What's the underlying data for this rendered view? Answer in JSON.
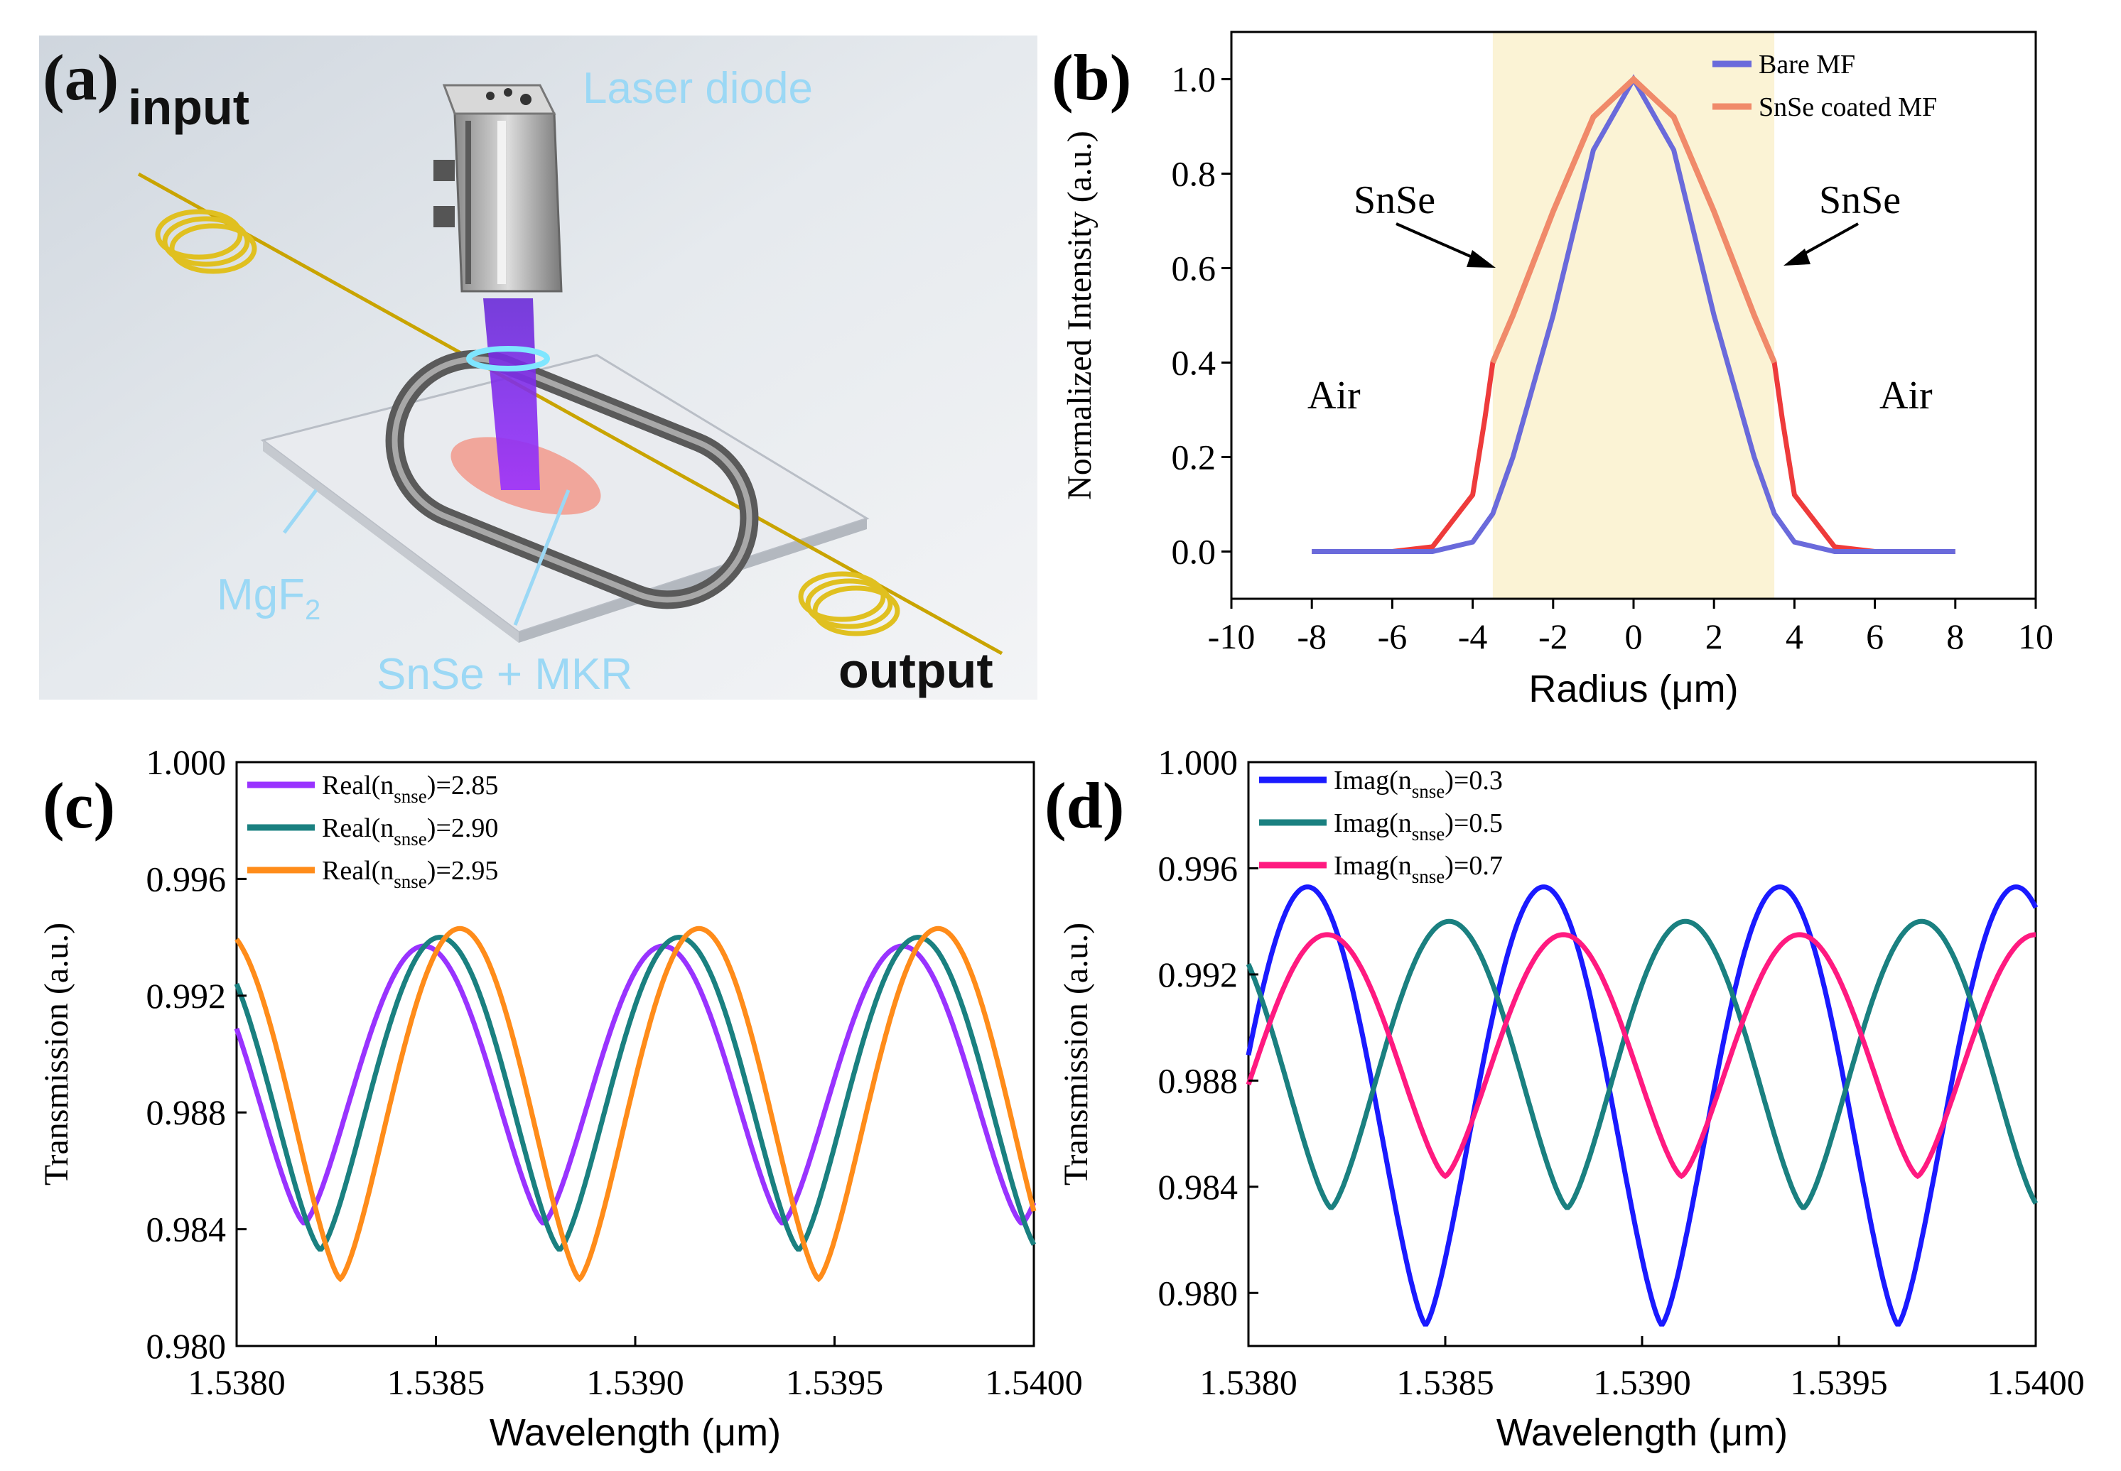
{
  "panel_a": {
    "label": "(a)",
    "input": "input",
    "output": "output",
    "laser": "Laser diode",
    "mgf2": "MgF",
    "mgf2_sub": "2",
    "snse": "SnSe + MKR"
  },
  "colors": {
    "violet": "#9933ff",
    "teal": "#1a8080",
    "orange": "#ff8c1a",
    "blue": "#1a1aff",
    "magenta": "#ff1a80",
    "bare_mf": "#6a6adb",
    "coated_mf": "#f08a6a",
    "coated_tail": "#ee3b3b",
    "band": "#fbf3d5",
    "label_blue": "#9bd8f5"
  },
  "chart_data": [
    {
      "panel": "(b)",
      "type": "line",
      "xlabel": "Radius (μm)",
      "ylabel": "Normalized Intensity (a.u.)",
      "xlim": [
        -10,
        10
      ],
      "ylim": [
        -0.1,
        1.1
      ],
      "xticks": [
        "-10",
        "-8",
        "-6",
        "-4",
        "-2",
        "0",
        "2",
        "4",
        "6",
        "8",
        "10"
      ],
      "yticks": [
        "0.0",
        "0.2",
        "0.4",
        "0.6",
        "0.8",
        "1.0"
      ],
      "shaded_region": [
        -3.5,
        3.5
      ],
      "annotations": [
        "SnSe",
        "SnSe",
        "Air",
        "Air"
      ],
      "legend": [
        "Bare MF",
        "SnSe coated MF"
      ],
      "series": [
        {
          "name": "Bare MF",
          "x": [
            -8,
            -6,
            -5,
            -4,
            -3.5,
            -3,
            -2,
            -1,
            0,
            1,
            2,
            3,
            3.5,
            4,
            5,
            6,
            8
          ],
          "values": [
            0,
            0,
            0,
            0.02,
            0.08,
            0.2,
            0.5,
            0.85,
            1.0,
            0.85,
            0.5,
            0.2,
            0.08,
            0.02,
            0,
            0,
            0
          ]
        },
        {
          "name": "SnSe coated MF",
          "x": [
            -8,
            -6,
            -5,
            -4,
            -3.7,
            -3.5,
            -3,
            -2,
            -1,
            0,
            1,
            2,
            3,
            3.5,
            3.7,
            4,
            5,
            6,
            8
          ],
          "values": [
            0,
            0,
            0.01,
            0.12,
            0.28,
            0.4,
            0.5,
            0.72,
            0.92,
            1.0,
            0.92,
            0.72,
            0.5,
            0.4,
            0.28,
            0.12,
            0.01,
            0,
            0
          ]
        }
      ]
    },
    {
      "panel": "(c)",
      "type": "line",
      "xlabel": "Wavelength (μm)",
      "ylabel": "Transmission (a.u.)",
      "xlim": [
        1.538,
        1.54
      ],
      "ylim": [
        0.98,
        1.0
      ],
      "xticks": [
        "1.5380",
        "1.5385",
        "1.5390",
        "1.5395",
        "1.5400"
      ],
      "yticks": [
        "0.980",
        "0.984",
        "0.988",
        "0.992",
        "0.996",
        "1.000"
      ],
      "series": [
        {
          "name": "Real(n_snse)=2.85",
          "legend_main": "Real(n",
          "legend_sub": "snse",
          "legend_tail": ")=2.85",
          "min": 0.9842,
          "max": 0.9937,
          "period": 0.0006,
          "dip": 1.53817
        },
        {
          "name": "Real(n_snse)=2.90",
          "legend_main": "Real(n",
          "legend_sub": "snse",
          "legend_tail": ")=2.90",
          "min": 0.9833,
          "max": 0.994,
          "period": 0.0006,
          "dip": 1.53821
        },
        {
          "name": "Real(n_snse)=2.95",
          "legend_main": "Real(n",
          "legend_sub": "snse",
          "legend_tail": ")=2.95",
          "min": 0.9823,
          "max": 0.9943,
          "period": 0.0006,
          "dip": 1.53826
        }
      ]
    },
    {
      "panel": "(d)",
      "type": "line",
      "xlabel": "Wavelength (μm)",
      "ylabel": "Transmission (a.u.)",
      "xlim": [
        1.538,
        1.54
      ],
      "ylim": [
        0.978,
        1.0
      ],
      "xticks": [
        "1.5380",
        "1.5385",
        "1.5390",
        "1.5395",
        "1.5400"
      ],
      "yticks": [
        "0.980",
        "0.984",
        "0.988",
        "0.992",
        "0.996",
        "1.000"
      ],
      "series": [
        {
          "name": "Imag(n_snse)=0.3",
          "legend_main": "Imag(n",
          "legend_sub": "snse",
          "legend_tail": ")=0.3",
          "min": 0.9788,
          "max": 0.9953,
          "period": 0.0006,
          "dip": 1.53845
        },
        {
          "name": "Imag(n_snse)=0.5",
          "legend_main": "Imag(n",
          "legend_sub": "snse",
          "legend_tail": ")=0.5",
          "min": 0.9832,
          "max": 0.994,
          "period": 0.0006,
          "dip": 1.53821
        },
        {
          "name": "Imag(n_snse)=0.7",
          "legend_main": "Imag(n",
          "legend_sub": "snse",
          "legend_tail": ")=0.7",
          "min": 0.9844,
          "max": 0.9935,
          "period": 0.0006,
          "dip": 1.5385
        }
      ]
    }
  ]
}
